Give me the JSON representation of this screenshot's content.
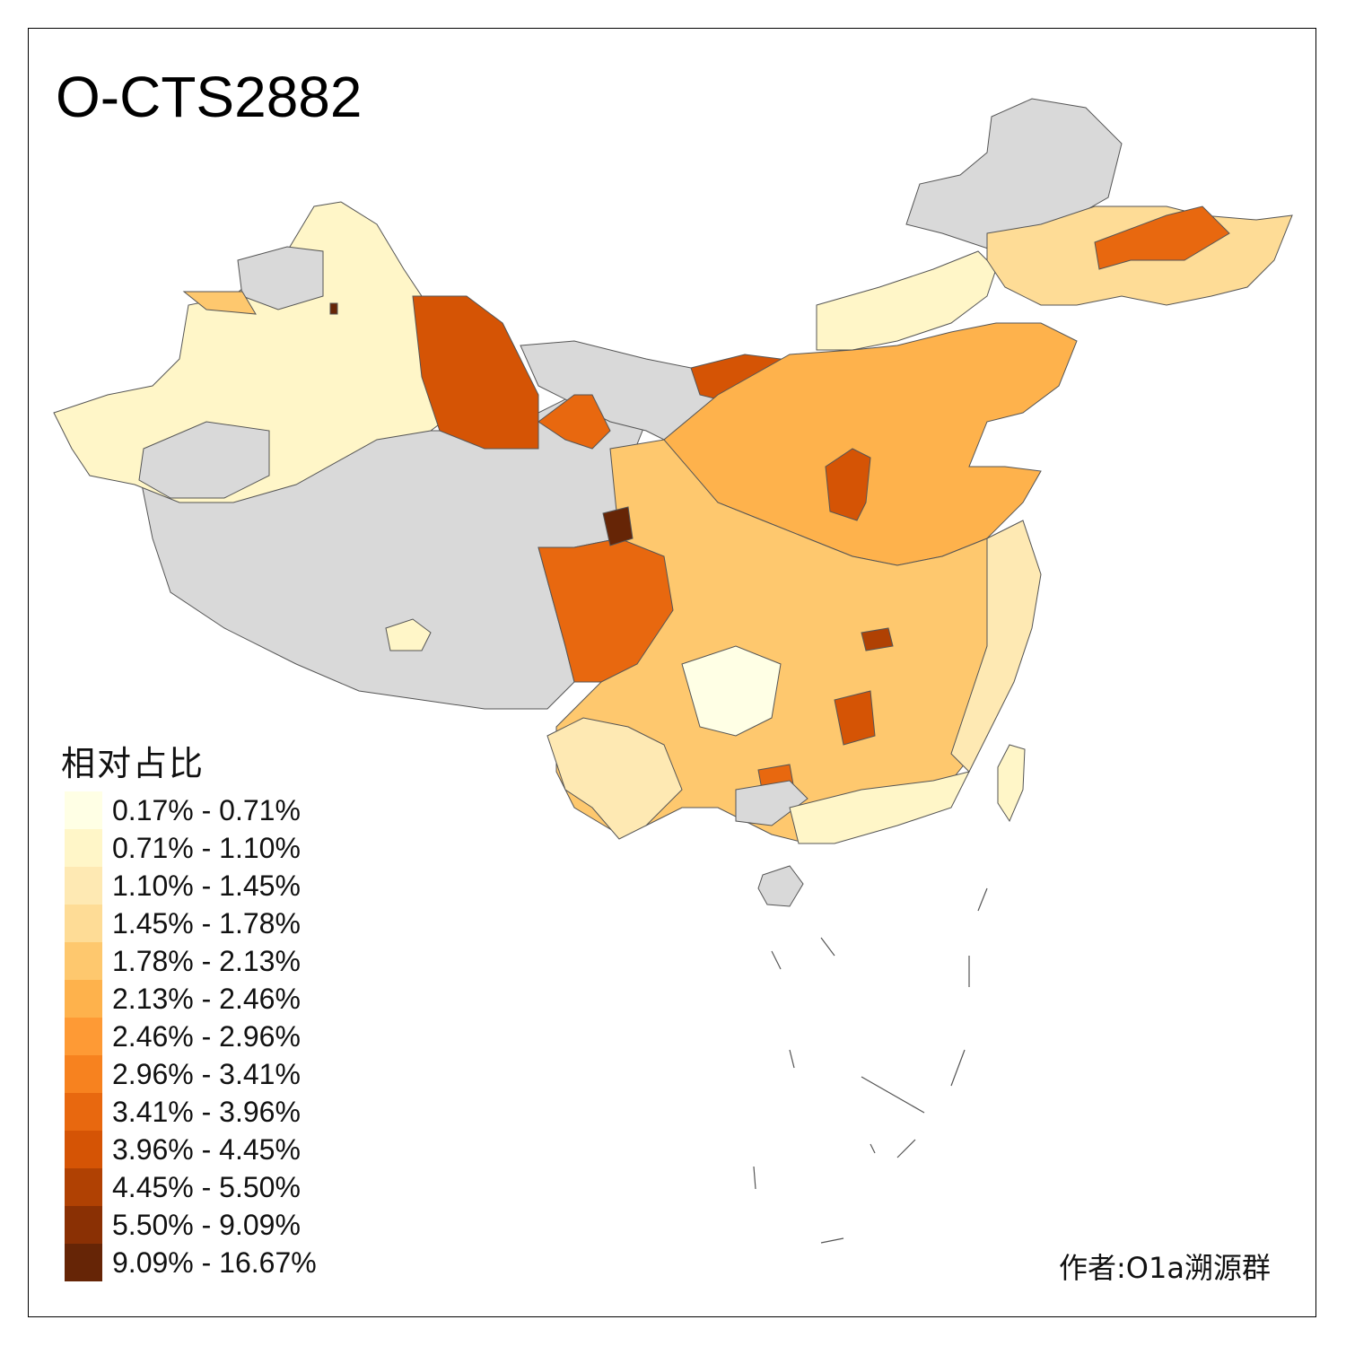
{
  "map": {
    "title": "O-CTS2882",
    "legend_title": "相对占比",
    "author": "作者:O1a溯源群",
    "no_data_color": "#d9d9d9",
    "legend": [
      {
        "label": "0.17% - 0.71%",
        "color": "#ffffe5"
      },
      {
        "label": "0.71% - 1.10%",
        "color": "#fff6c8"
      },
      {
        "label": "1.10% - 1.45%",
        "color": "#fee9b3"
      },
      {
        "label": "1.45% - 1.78%",
        "color": "#fedc96"
      },
      {
        "label": "1.78% - 2.13%",
        "color": "#fec86e"
      },
      {
        "label": "2.13% - 2.46%",
        "color": "#feb24c"
      },
      {
        "label": "2.46% - 2.96%",
        "color": "#fe9a35"
      },
      {
        "label": "2.96% - 3.41%",
        "color": "#f7821f"
      },
      {
        "label": "3.41% - 3.96%",
        "color": "#e8680f"
      },
      {
        "label": "3.96% - 4.45%",
        "color": "#d55405"
      },
      {
        "label": "4.45% - 5.50%",
        "color": "#b04103"
      },
      {
        "label": "5.50% - 9.09%",
        "color": "#8a3004"
      },
      {
        "label": "9.09% - 16.67%",
        "color": "#662506"
      }
    ]
  }
}
